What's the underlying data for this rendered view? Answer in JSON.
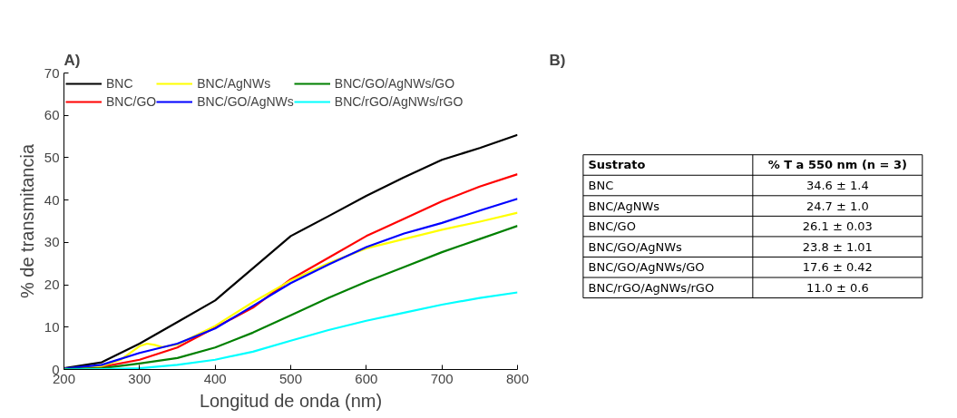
{
  "chart_data": [
    {
      "type": "line",
      "title": "A)",
      "xlabel": "Longitud de onda (nm)",
      "ylabel": "% de transmitancia",
      "x": [
        200,
        250,
        300,
        350,
        400,
        450,
        500,
        550,
        600,
        650,
        700,
        750,
        800
      ],
      "xlim": [
        200,
        800
      ],
      "xticks": [
        200,
        300,
        400,
        500,
        600,
        700,
        800
      ],
      "ylim": [
        0,
        70
      ],
      "yticks": [
        0,
        10,
        20,
        30,
        40,
        50,
        60,
        70
      ],
      "grid": false,
      "legend": "top left",
      "line_style": "solid",
      "marker": "none",
      "series": [
        {
          "name": "BNC",
          "color": "#000000",
          "values": [
            0.3,
            1.7,
            6.1,
            11.2,
            16.3,
            23.9,
            31.5,
            36.2,
            41.0,
            45.4,
            49.5,
            52.3,
            55.4
          ]
        },
        {
          "name": "BNC/GO",
          "color": "#ff0000",
          "values": [
            0.1,
            0.6,
            2.3,
            5.2,
            9.9,
            14.6,
            21.3,
            26.4,
            31.5,
            35.6,
            39.7,
            43.2,
            46.1
          ]
        },
        {
          "name": "BNC/AgNWs",
          "color": "#ffff00",
          "x": [
            200,
            250,
            275,
            300,
            310,
            320,
            330,
            350,
            400,
            450,
            500,
            550,
            600,
            650,
            700,
            750,
            800
          ],
          "values": [
            0.2,
            0.8,
            2.3,
            5.5,
            6.1,
            5.8,
            5.3,
            5.9,
            10.3,
            15.9,
            21.0,
            25.1,
            28.6,
            30.8,
            33.0,
            34.9,
            37.0
          ]
        },
        {
          "name": "BNC/GO/AgNWs",
          "color": "#0000ff",
          "values": [
            0.2,
            1.1,
            3.9,
            6.1,
            9.7,
            15.0,
            20.4,
            24.8,
            28.9,
            32.1,
            34.6,
            37.5,
            40.3
          ]
        },
        {
          "name": "BNC/GO/AgNWs/GO",
          "color": "#008000",
          "values": [
            0.1,
            0.3,
            1.4,
            2.7,
            5.2,
            8.7,
            12.8,
            16.9,
            20.7,
            24.2,
            27.7,
            30.8,
            33.9
          ]
        },
        {
          "name": "BNC/rGO/AgNWs/rGO",
          "color": "#00ffff",
          "values": [
            0.0,
            0.1,
            0.3,
            1.1,
            2.3,
            4.2,
            6.8,
            9.3,
            11.5,
            13.4,
            15.3,
            16.9,
            18.2
          ]
        }
      ]
    },
    {
      "type": "other",
      "title": "B)",
      "annotations": [
        "Sustrato",
        "% T a 550 nm (n = 3)"
      ],
      "categories": [
        "BNC",
        "BNC/AgNWs",
        "BNC/GO",
        "BNC/GO/AgNWs",
        "BNC/GO/AgNWs/GO",
        "BNC/rGO/AgNWs/rGO"
      ],
      "value_labels": [
        "34.6 ± 1.4",
        "24.7 ± 1.0",
        "26.1 ± 0.03",
        "23.8 ± 1.01",
        "17.6 ± 0.42",
        "11.0 ± 0.6"
      ]
    }
  ]
}
